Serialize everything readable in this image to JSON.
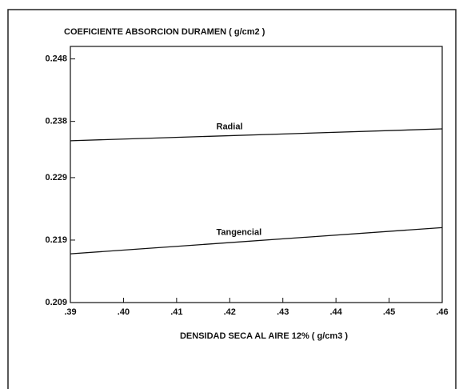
{
  "chart_data": {
    "type": "line",
    "title": "COEFICIENTE ABSORCION DURAMEN ( g/cm2 )",
    "x_label": "DENSIDAD SECA AL AIRE 12% ( g/cm3 )",
    "x": [
      0.39,
      0.46
    ],
    "series": [
      {
        "name": "Radial",
        "color": "#111111",
        "values": [
          0.2349,
          0.2368
        ]
      },
      {
        "name": "Tangencial",
        "color": "#111111",
        "values": [
          0.2168,
          0.221
        ]
      }
    ],
    "xlim": [
      0.39,
      0.46
    ],
    "xticks": [
      {
        "value": 0.39,
        "label": ".39"
      },
      {
        "value": 0.4,
        "label": ".40"
      },
      {
        "value": 0.41,
        "label": ".41"
      },
      {
        "value": 0.42,
        "label": ".42"
      },
      {
        "value": 0.43,
        "label": ".43"
      },
      {
        "value": 0.44,
        "label": ".44"
      },
      {
        "value": 0.45,
        "label": ".45"
      },
      {
        "value": 0.46,
        "label": ".46"
      }
    ],
    "ylim": [
      0.209,
      0.25
    ],
    "yticks": [
      0.209,
      0.219,
      0.229,
      0.238,
      0.248
    ],
    "grid": false
  }
}
